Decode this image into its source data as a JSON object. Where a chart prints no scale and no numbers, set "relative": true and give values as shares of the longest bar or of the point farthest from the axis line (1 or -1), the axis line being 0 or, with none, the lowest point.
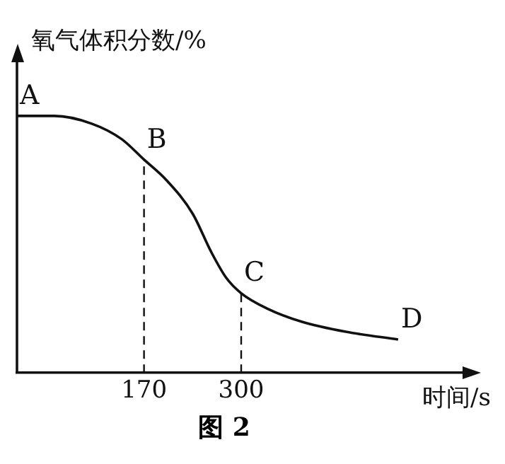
{
  "chart_data": {
    "type": "line",
    "relative": true,
    "ylabel": "氧气体积分数/%",
    "xlabel": "时间/s",
    "xlim": [
      0,
      600
    ],
    "xticks": [
      170,
      300
    ],
    "grid": false,
    "legend": false,
    "marker": "none",
    "line_style": "solid",
    "series": [
      {
        "color": "#111111",
        "x": [
          0,
          50,
          100,
          140,
          170,
          200,
          235,
          260,
          280,
          300,
          335,
          380,
          440,
          510
        ],
        "values": [
          1.0,
          1.0,
          0.97,
          0.91,
          0.83,
          0.75,
          0.62,
          0.47,
          0.37,
          0.31,
          0.25,
          0.2,
          0.16,
          0.13
        ]
      }
    ],
    "ref_lines": [
      {
        "axis": "x",
        "value": 170,
        "line_style": "dashed",
        "color": "#111111"
      },
      {
        "axis": "x",
        "value": 300,
        "line_style": "dashed",
        "color": "#111111"
      }
    ],
    "annotations": [
      {
        "text": "A",
        "x": 0,
        "y": 1.0
      },
      {
        "text": "B",
        "x": 170,
        "y": 0.83
      },
      {
        "text": "C",
        "x": 300,
        "y": 0.31
      },
      {
        "text": "D",
        "x": 510,
        "y": 0.13
      },
      "图 2"
    ]
  }
}
